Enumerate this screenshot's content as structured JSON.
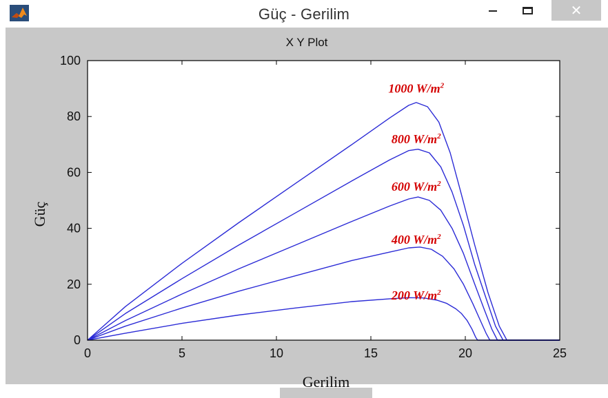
{
  "window": {
    "title": "Güç - Gerilim",
    "close_glyph": "✕",
    "icon": "matlab-logo-icon"
  },
  "chart_data": {
    "type": "line",
    "title": "X Y Plot",
    "xlabel": "Gerilim",
    "ylabel": "Güç",
    "xlim": [
      0,
      25
    ],
    "ylim": [
      0,
      100
    ],
    "xticks": [
      "0",
      "5",
      "10",
      "15",
      "20",
      "25"
    ],
    "yticks": [
      "0",
      "20",
      "40",
      "60",
      "80",
      "100"
    ],
    "grid": false,
    "line_color": "#2b2bd6",
    "label_color": "#d40000",
    "series": [
      {
        "name": "200 W/m²",
        "label_main": "200 W/m",
        "label_sup": "2",
        "x": [
          0,
          2,
          5,
          8,
          11,
          14,
          16,
          17,
          17.8,
          18.5,
          19,
          19.5,
          19.8,
          20.1,
          20.35,
          20.55,
          20.65,
          25
        ],
        "y": [
          0,
          2.5,
          6,
          9,
          11.5,
          13.8,
          14.8,
          15.2,
          15.1,
          14.3,
          13.2,
          11.2,
          9.5,
          7,
          4,
          1,
          0,
          0
        ]
      },
      {
        "name": "400 W/m²",
        "label_main": "400 W/m",
        "label_sup": "2",
        "x": [
          0,
          2,
          5,
          8,
          11,
          14,
          16,
          17,
          17.6,
          18.2,
          18.8,
          19.4,
          19.9,
          20.4,
          20.8,
          21.1,
          21.3,
          25
        ],
        "y": [
          0,
          5,
          11.5,
          17.5,
          23,
          28.5,
          31.5,
          33,
          33.3,
          32.5,
          30,
          25.5,
          20,
          13,
          7,
          2.5,
          0,
          0
        ]
      },
      {
        "name": "600 W/m²",
        "label_main": "600 W/m",
        "label_sup": "2",
        "x": [
          0,
          2,
          5,
          8,
          11,
          14,
          16,
          17,
          17.5,
          18.1,
          18.7,
          19.3,
          19.9,
          20.5,
          21,
          21.4,
          21.7,
          25
        ],
        "y": [
          0,
          7,
          16.5,
          25.5,
          34,
          42.5,
          48,
          50.5,
          51.2,
          50,
          46.5,
          40,
          31,
          20,
          11,
          4,
          0,
          0
        ]
      },
      {
        "name": "800 W/m²",
        "label_main": "800 W/m",
        "label_sup": "2",
        "x": [
          0,
          2,
          5,
          8,
          11,
          14,
          16,
          17,
          17.5,
          18.1,
          18.7,
          19.3,
          19.9,
          20.5,
          21.1,
          21.6,
          22,
          25
        ],
        "y": [
          0,
          9.5,
          22,
          34,
          45.5,
          57,
          64.5,
          67.8,
          68.3,
          67,
          62,
          53,
          41,
          27,
          15,
          5,
          0,
          0
        ]
      },
      {
        "name": "1000 W/m²",
        "label_main": "1000 W/m",
        "label_sup": "2",
        "x": [
          0,
          2,
          5,
          8,
          11,
          14,
          16,
          17,
          17.4,
          18,
          18.6,
          19.2,
          19.8,
          20.5,
          21.2,
          21.8,
          22.2,
          25
        ],
        "y": [
          0,
          12,
          27.5,
          42,
          56,
          70,
          79.5,
          84,
          85,
          83.5,
          78,
          67,
          52,
          34,
          17,
          5,
          0,
          0
        ]
      }
    ],
    "label_positions_data": [
      {
        "x": 17.4,
        "y": 14.5
      },
      {
        "x": 17.4,
        "y": 34.5
      },
      {
        "x": 17.4,
        "y": 53.5
      },
      {
        "x": 17.4,
        "y": 70.5
      },
      {
        "x": 17.4,
        "y": 88.5
      }
    ]
  }
}
